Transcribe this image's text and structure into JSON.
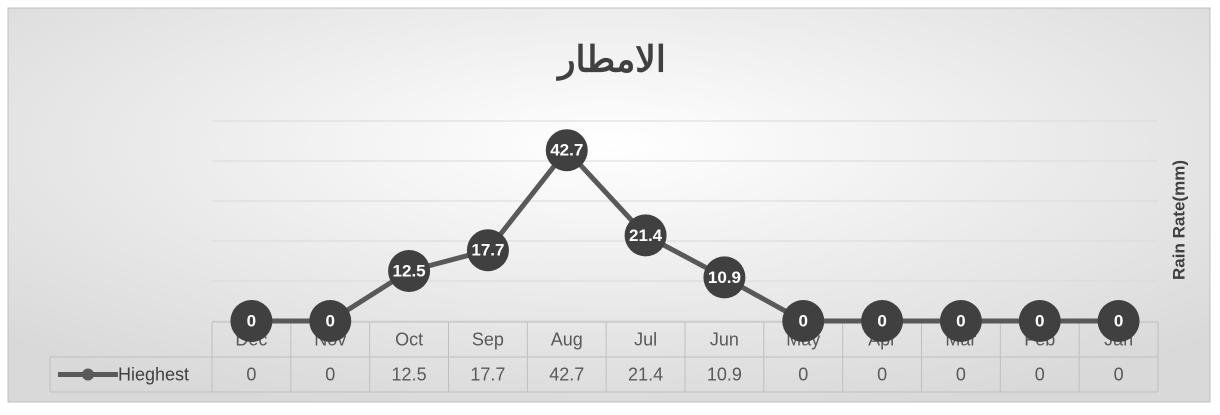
{
  "chart_data": {
    "type": "line",
    "title": "الامطار",
    "y_axis_label": "Rain Rate(mm)",
    "categories": [
      "Dec",
      "Nov",
      "Oct",
      "Sep",
      "Aug",
      "Jul",
      "Jun",
      "May",
      "Apr",
      "Mar",
      "Feb",
      "Jan"
    ],
    "series": [
      {
        "name": "Hieghest",
        "color": "#595959",
        "values": [
          0,
          0,
          12.5,
          17.7,
          42.7,
          21.4,
          10.9,
          0,
          0,
          0,
          0,
          0
        ]
      }
    ],
    "ylim": [
      0,
      50
    ],
    "yticks": [
      0,
      10,
      20,
      30,
      40,
      50
    ],
    "grid": true
  }
}
